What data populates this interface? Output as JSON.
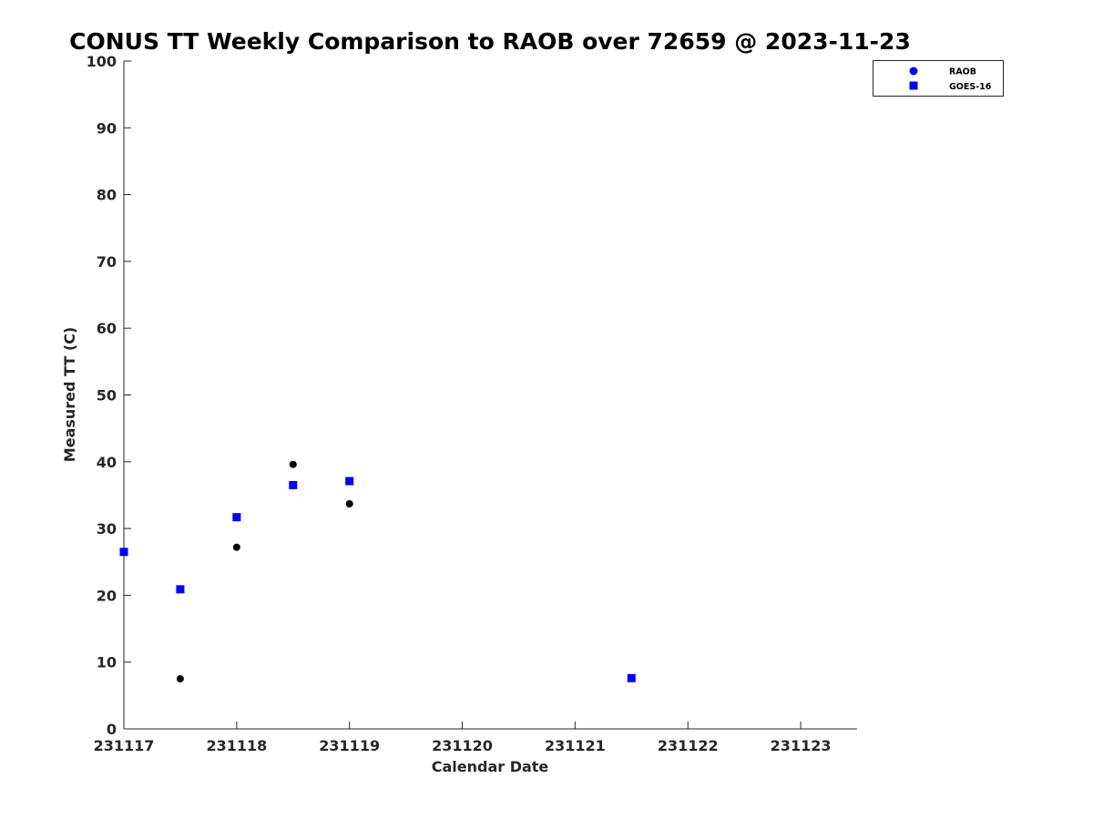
{
  "chart_data": {
    "type": "scatter",
    "title": "CONUS TT Weekly Comparison to RAOB over 72659 @ 2023-11-23",
    "xlabel": "Calendar Date",
    "ylabel": "Measured TT (C)",
    "xlim": [
      0,
      6.5
    ],
    "ylim": [
      0,
      100
    ],
    "x_tick_values": [
      0,
      1,
      2,
      3,
      4,
      5,
      6
    ],
    "x_tick_labels": [
      "231117",
      "231118",
      "231119",
      "231120",
      "231121",
      "231122",
      "231123"
    ],
    "y_tick_values": [
      0,
      10,
      20,
      30,
      40,
      50,
      60,
      70,
      80,
      90,
      100
    ],
    "y_tick_labels": [
      "0",
      "10",
      "20",
      "30",
      "40",
      "50",
      "60",
      "70",
      "80",
      "90",
      "100"
    ],
    "grid": false,
    "legend_position": "top-right",
    "series": [
      {
        "name": "RAOB",
        "marker": "circle",
        "color": "#000000",
        "legend_color": "#0000ff",
        "points": [
          [
            0,
            26.5
          ],
          [
            0.5,
            7.5
          ],
          [
            1,
            27.2
          ],
          [
            1.5,
            39.6
          ],
          [
            2,
            33.7
          ]
        ]
      },
      {
        "name": "GOES-16",
        "marker": "square",
        "color": "#0000ff",
        "legend_color": "#0000ff",
        "points": [
          [
            0,
            26.5
          ],
          [
            0.5,
            20.9
          ],
          [
            1,
            31.7
          ],
          [
            1.5,
            36.5
          ],
          [
            2,
            37.1
          ],
          [
            4.5,
            7.6
          ]
        ]
      }
    ]
  }
}
